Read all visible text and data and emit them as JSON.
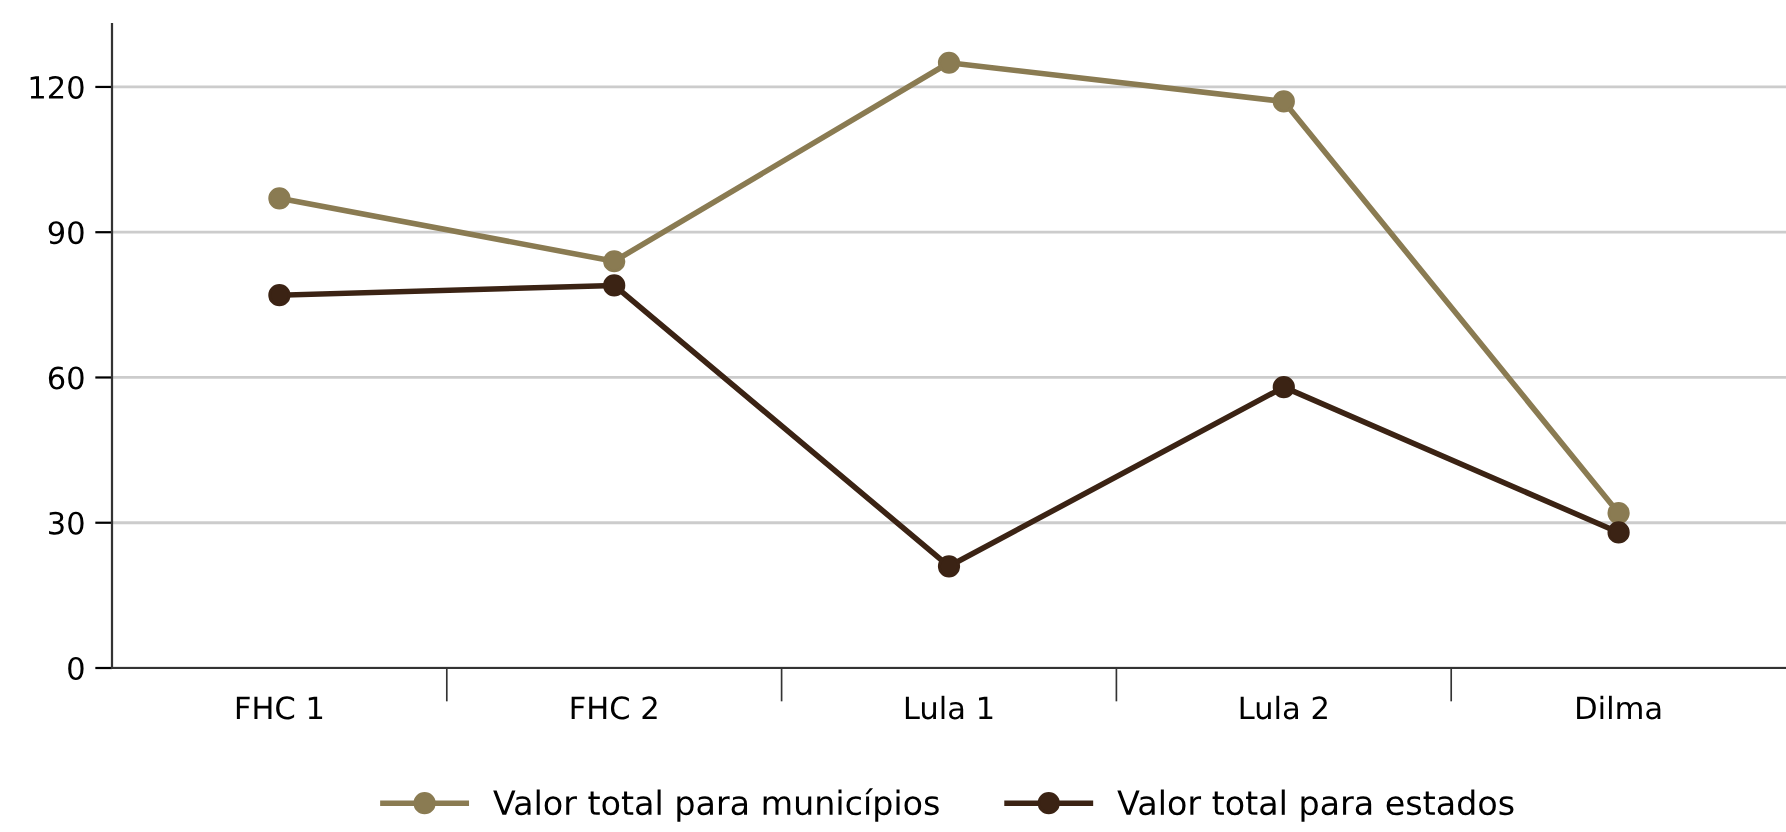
{
  "chart_data": {
    "type": "line",
    "categories": [
      "FHC 1",
      "FHC 2",
      "Lula 1",
      "Lula 2",
      "Dilma"
    ],
    "series": [
      {
        "name": "Valor total para municípios",
        "color": "#8a7b52",
        "values": [
          97,
          84,
          125,
          117,
          32
        ]
      },
      {
        "name": "Valor total para estados",
        "color": "#3b2314",
        "values": [
          77,
          79,
          21,
          58,
          28
        ]
      }
    ],
    "ylim": [
      0,
      133
    ],
    "yticks": [
      0,
      30,
      60,
      90,
      120
    ],
    "grid": "y",
    "legend": "bottom",
    "marker": "circle",
    "line_style": "solid"
  }
}
